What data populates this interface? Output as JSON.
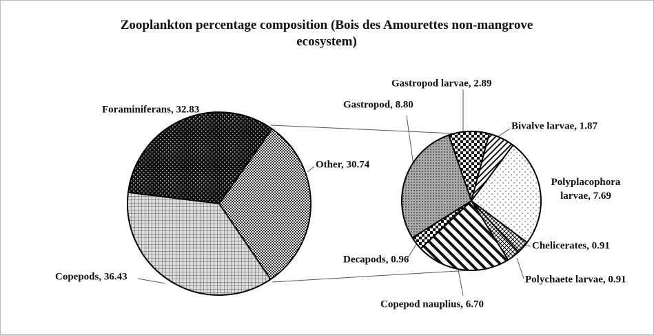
{
  "chart_data": [
    {
      "type": "pie",
      "title": "Zooplankton percentage composition (Bois des Amourettes non-mangrove ecosystem)",
      "labels": [
        "Foraminiferans, 32.83",
        "Other, 30.74",
        "Copepods, 36.43"
      ],
      "values": [
        32.83,
        30.74,
        36.43
      ]
    },
    {
      "type": "pie",
      "labels": [
        "Gastropod larvae, 2.89",
        "Bivalve larvae, 1.87",
        "Polyplacophora larvae, 7.69",
        "Chelicerates, 0.91",
        "Polychaete larvae, 0.91",
        "Copepod nauplius, 6.70",
        "Decapods, 0.96",
        "Gastropod, 8.80"
      ],
      "values": [
        2.89,
        1.87,
        7.69,
        0.91,
        0.91,
        6.7,
        0.96,
        8.8
      ]
    }
  ]
}
